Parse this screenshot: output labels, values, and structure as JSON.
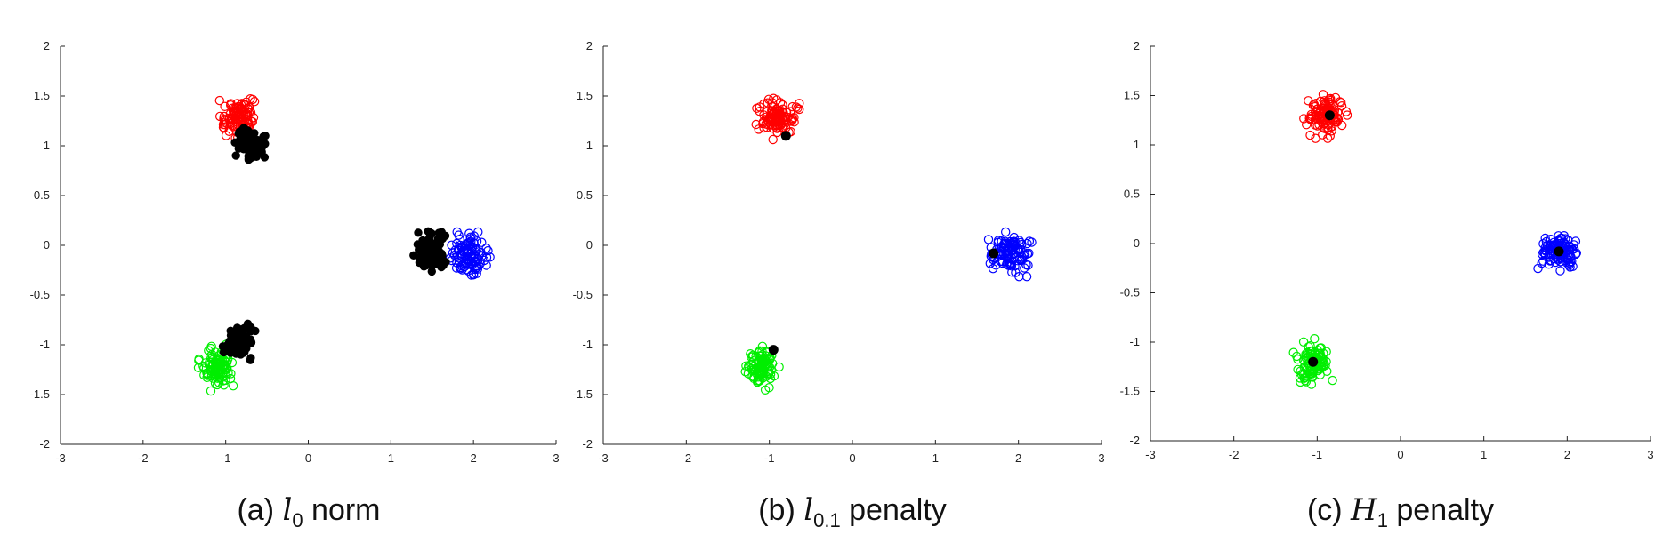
{
  "chart_data": [
    {
      "type": "scatter",
      "panel": "(a)",
      "caption": {
        "prefix": "(a) ",
        "math": "l",
        "sub": "0",
        "suffix": " norm"
      },
      "xlim": [
        -3,
        3
      ],
      "ylim": [
        -2,
        2
      ],
      "xticks": [
        "-3",
        "-2",
        "-1",
        "0",
        "1",
        "2",
        "3"
      ],
      "yticks": [
        "-2",
        "-1.5",
        "-1",
        "-0.5",
        "0",
        "0.5",
        "1",
        "1.5",
        "2"
      ],
      "grid": false,
      "series": [
        {
          "marker": "open-circle",
          "color": "#ff0000",
          "center": [
            -0.85,
            1.28
          ],
          "spread": [
            0.1,
            0.09
          ],
          "n": 110
        },
        {
          "marker": "open-circle",
          "color": "#0000ff",
          "center": [
            1.95,
            -0.1
          ],
          "spread": [
            0.11,
            0.09
          ],
          "n": 110
        },
        {
          "marker": "open-circle",
          "color": "#00ee00",
          "center": [
            -1.1,
            -1.23
          ],
          "spread": [
            0.09,
            0.09
          ],
          "n": 110
        },
        {
          "marker": "filled-circle",
          "color": "#000000",
          "center": [
            -0.7,
            1.02
          ],
          "spread": [
            0.08,
            0.07
          ],
          "n": 90
        },
        {
          "marker": "filled-circle",
          "color": "#000000",
          "center": [
            1.5,
            -0.06
          ],
          "spread": [
            0.09,
            0.08
          ],
          "n": 90
        },
        {
          "marker": "filled-circle",
          "color": "#000000",
          "center": [
            -0.85,
            -0.98
          ],
          "spread": [
            0.08,
            0.08
          ],
          "n": 90
        }
      ],
      "single_points": []
    },
    {
      "type": "scatter",
      "panel": "(b)",
      "caption": {
        "prefix": "(b) ",
        "math": "l",
        "sub": "0.1",
        "suffix": " penalty"
      },
      "xlim": [
        -3,
        3
      ],
      "ylim": [
        -2,
        2
      ],
      "xticks": [
        "-3",
        "-2",
        "-1",
        "0",
        "1",
        "2",
        "3"
      ],
      "yticks": [
        "-2",
        "-1.5",
        "-1",
        "-0.5",
        "0",
        "0.5",
        "1",
        "1.5",
        "2"
      ],
      "grid": false,
      "series": [
        {
          "marker": "open-circle",
          "color": "#ff0000",
          "center": [
            -0.9,
            1.28
          ],
          "spread": [
            0.1,
            0.09
          ],
          "n": 110
        },
        {
          "marker": "open-circle",
          "color": "#0000ff",
          "center": [
            1.9,
            -0.08
          ],
          "spread": [
            0.11,
            0.09
          ],
          "n": 110
        },
        {
          "marker": "open-circle",
          "color": "#00ee00",
          "center": [
            -1.08,
            -1.22
          ],
          "spread": [
            0.09,
            0.09
          ],
          "n": 110
        }
      ],
      "single_points": [
        {
          "x": -0.8,
          "y": 1.1,
          "color": "#000000"
        },
        {
          "x": 1.7,
          "y": -0.08,
          "color": "#000000"
        },
        {
          "x": -0.95,
          "y": -1.05,
          "color": "#000000"
        }
      ]
    },
    {
      "type": "scatter",
      "panel": "(c)",
      "caption": {
        "prefix": "(c) ",
        "math": "H",
        "sub": "1",
        "suffix": " penalty"
      },
      "xlim": [
        -3,
        3
      ],
      "ylim": [
        -2,
        2
      ],
      "xticks": [
        "-3",
        "-2",
        "-1",
        "0",
        "1",
        "2",
        "3"
      ],
      "yticks": [
        "-2",
        "-1.5",
        "-1",
        "-0.5",
        "0",
        "0.5",
        "1",
        "1.5",
        "2"
      ],
      "grid": false,
      "series": [
        {
          "marker": "open-circle",
          "color": "#ff0000",
          "center": [
            -0.9,
            1.3
          ],
          "spread": [
            0.1,
            0.09
          ],
          "n": 110
        },
        {
          "marker": "open-circle",
          "color": "#0000ff",
          "center": [
            1.9,
            -0.08
          ],
          "spread": [
            0.11,
            0.09
          ],
          "n": 110
        },
        {
          "marker": "open-circle",
          "color": "#00ee00",
          "center": [
            -1.05,
            -1.2
          ],
          "spread": [
            0.09,
            0.09
          ],
          "n": 110
        }
      ],
      "single_points": [
        {
          "x": -0.85,
          "y": 1.3,
          "color": "#000000"
        },
        {
          "x": 1.9,
          "y": -0.08,
          "color": "#000000"
        },
        {
          "x": -1.05,
          "y": -1.2,
          "color": "#000000"
        }
      ]
    }
  ]
}
